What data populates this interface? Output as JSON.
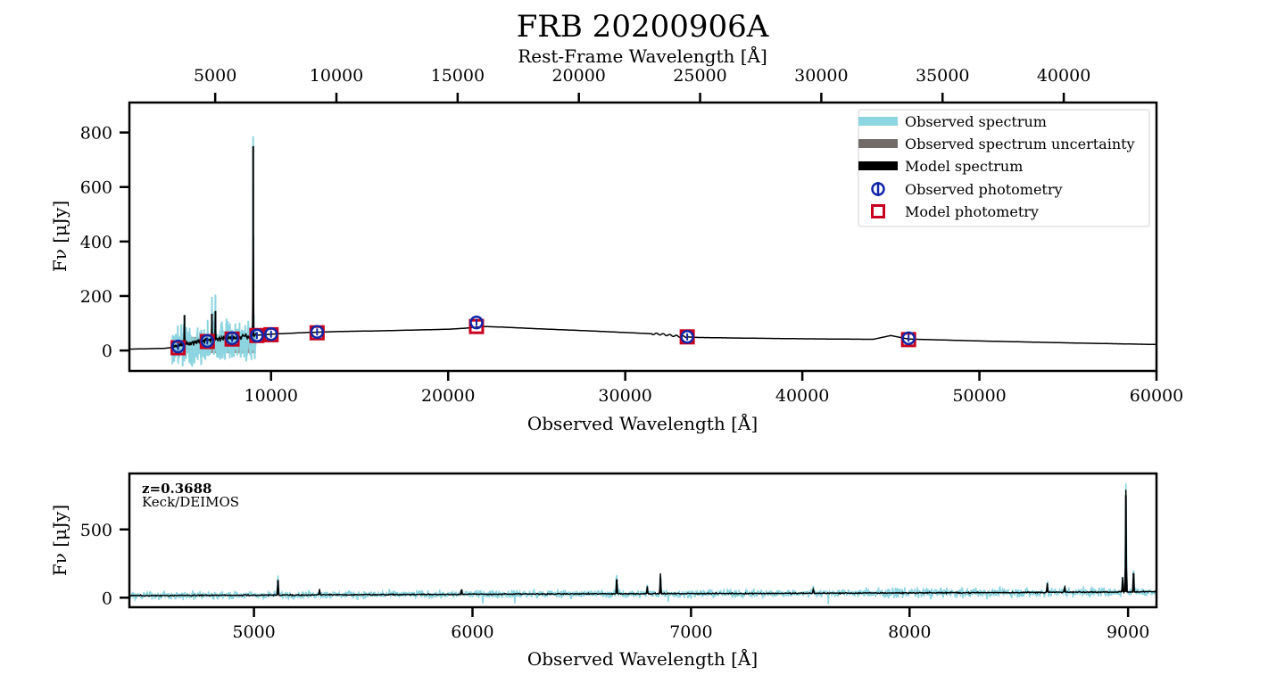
{
  "figure_title": "FRB 20200906A",
  "colors": {
    "observed_spectrum": "#8dd5e0",
    "uncertainty": "#736b68",
    "model_spectrum": "#000000",
    "observed_photometry": "#1226a8",
    "model_photometry": "#c8001e"
  },
  "chart_data": [
    {
      "type": "line",
      "name": "sed-panel",
      "xlabel": "Observed Wavelength [Å]",
      "ylabel": "Fν [μJy]",
      "top_xlabel": "Rest-Frame Wavelength [Å]",
      "xlim": [
        2000,
        60000
      ],
      "ylim": [
        -75,
        910
      ],
      "top_xlim": [
        1461,
        43825
      ],
      "xticks": [
        10000,
        20000,
        30000,
        40000,
        50000,
        60000
      ],
      "yticks": [
        0,
        200,
        400,
        600,
        800
      ],
      "top_xticks": [
        5000,
        10000,
        15000,
        20000,
        25000,
        30000,
        35000,
        40000
      ],
      "legend": {
        "placement": "top-right",
        "entries": [
          "Observed spectrum",
          "Observed spectrum uncertainty",
          "Model spectrum",
          "Observed photometry",
          "Model photometry"
        ]
      },
      "observed_photometry": {
        "x": [
          4750,
          6400,
          7800,
          9200,
          10000,
          12600,
          21600,
          33500,
          46000
        ],
        "y": [
          15,
          35,
          45,
          55,
          60,
          68,
          103,
          50,
          45
        ]
      },
      "model_photometry": {
        "x": [
          4750,
          6400,
          7800,
          9200,
          10000,
          12600,
          21600,
          33500,
          46000
        ],
        "y": [
          10,
          33,
          42,
          55,
          58,
          65,
          88,
          50,
          40
        ]
      },
      "model_spectrum": {
        "x": [
          2000,
          4000,
          4500,
          5000,
          6000,
          7000,
          8000,
          9000,
          10000,
          12000,
          14000,
          16000,
          18000,
          20000,
          21000,
          22000,
          23000,
          25000,
          28000,
          30000,
          32000,
          33000,
          34000,
          36000,
          40000,
          44000,
          45000,
          46000,
          50000,
          55000,
          60000
        ],
        "y": [
          5,
          8,
          12,
          22,
          35,
          42,
          48,
          55,
          60,
          66,
          70,
          72,
          75,
          78,
          82,
          88,
          86,
          80,
          72,
          66,
          60,
          52,
          48,
          46,
          43,
          41,
          55,
          42,
          35,
          28,
          22
        ]
      },
      "model_emission_lines": {
        "x": [
          5110,
          6660,
          6860,
          8990
        ],
        "peak": [
          130,
          135,
          145,
          750
        ]
      }
    },
    {
      "type": "line",
      "name": "spectrum-panel",
      "xlabel": "Observed Wavelength [Å]",
      "ylabel": "Fν [μJy]",
      "annotation_redshift": "z=0.3688",
      "annotation_instrument": "Keck/DEIMOS",
      "xlim": [
        4430,
        9130
      ],
      "ylim": [
        -70,
        910
      ],
      "xticks": [
        5000,
        6000,
        7000,
        8000,
        9000
      ],
      "yticks": [
        0,
        500
      ],
      "continuum": {
        "x": [
          4430,
          5000,
          5500,
          6000,
          6500,
          7000,
          7500,
          8000,
          8500,
          9000,
          9130
        ],
        "y": [
          15,
          18,
          22,
          25,
          28,
          30,
          32,
          35,
          38,
          42,
          44
        ]
      },
      "emission_lines": {
        "x": [
          5110,
          5300,
          5950,
          6660,
          6800,
          6860,
          7560,
          8630,
          8710,
          8975,
          8990,
          9025
        ],
        "peak": [
          130,
          40,
          45,
          135,
          55,
          145,
          40,
          70,
          55,
          110,
          750,
          180
        ]
      }
    }
  ]
}
